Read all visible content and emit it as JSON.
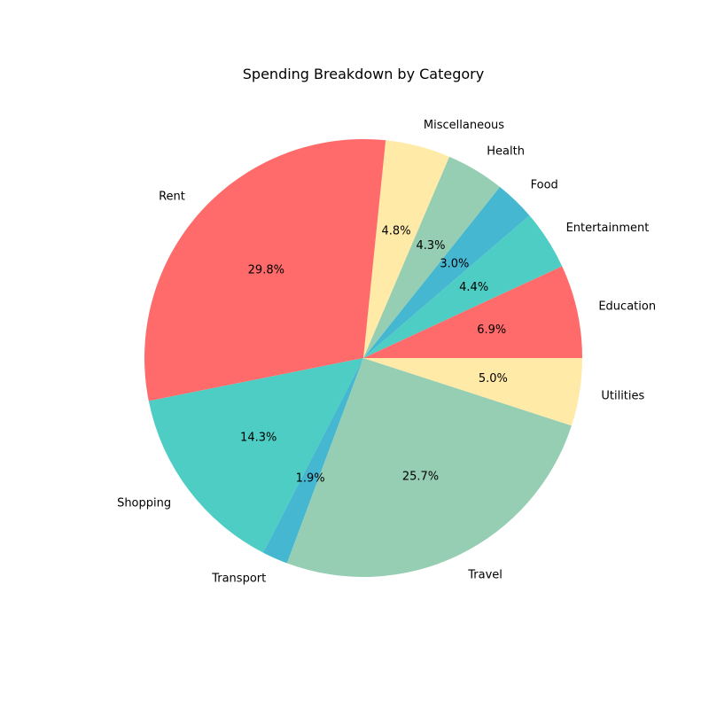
{
  "chart_data": {
    "type": "pie",
    "title": "Spending Breakdown by Category",
    "start_angle_deg": 0,
    "direction": "counterclockwise",
    "slices": [
      {
        "label": "Education",
        "percent": 6.9,
        "percent_label": "6.9%",
        "color": "#FF6B6B"
      },
      {
        "label": "Entertainment",
        "percent": 4.4,
        "percent_label": "4.4%",
        "color": "#4ECDC4"
      },
      {
        "label": "Food",
        "percent": 3.0,
        "percent_label": "3.0%",
        "color": "#45B7D1"
      },
      {
        "label": "Health",
        "percent": 4.3,
        "percent_label": "4.3%",
        "color": "#96CEB4"
      },
      {
        "label": "Miscellaneous",
        "percent": 4.8,
        "percent_label": "4.8%",
        "color": "#FFEAA7"
      },
      {
        "label": "Rent",
        "percent": 29.8,
        "percent_label": "29.8%",
        "color": "#FF6B6B"
      },
      {
        "label": "Shopping",
        "percent": 14.3,
        "percent_label": "14.3%",
        "color": "#4ECDC4"
      },
      {
        "label": "Transport",
        "percent": 1.9,
        "percent_label": "1.9%",
        "color": "#45B7D1"
      },
      {
        "label": "Travel",
        "percent": 25.7,
        "percent_label": "25.7%",
        "color": "#96CEB4"
      },
      {
        "label": "Utilities",
        "percent": 5.0,
        "percent_label": "5.0%",
        "color": "#FFEAA7"
      }
    ]
  }
}
